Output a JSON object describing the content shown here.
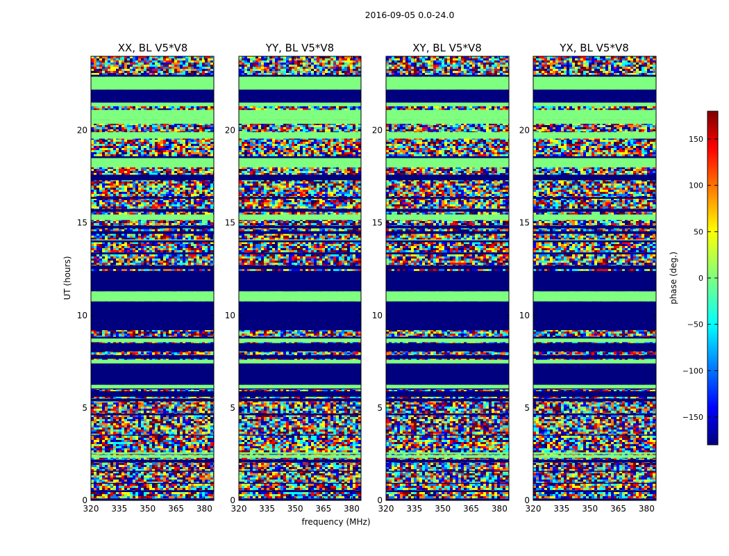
{
  "figure": {
    "suptitle": "2016-09-05 0.0-24.0",
    "xlabel": "frequency (MHz)",
    "ylabel": "UT (hours)"
  },
  "colors": {
    "colormap": [
      "#00007f",
      "#0000ff",
      "#007fff",
      "#00ffff",
      "#7fff7f",
      "#ffff00",
      "#ff7f00",
      "#ff0000",
      "#7f0000"
    ],
    "masked": "#00007f",
    "zero_phase": "#7fff7f"
  },
  "chart_data": {
    "type": "heatmap",
    "colorscale": "jet",
    "panels": [
      {
        "title": "XX, BL V5*V8",
        "polarization": "XX"
      },
      {
        "title": "YY, BL V5*V8",
        "polarization": "YY"
      },
      {
        "title": "XY, BL V5*V8",
        "polarization": "XY"
      },
      {
        "title": "YX, BL V5*V8",
        "polarization": "YX"
      }
    ],
    "x": {
      "label": "frequency (MHz)",
      "range": [
        320,
        385
      ],
      "ticks": [
        320,
        335,
        350,
        365,
        380
      ],
      "tick_labels": [
        "320",
        "335",
        "350",
        "365",
        "380"
      ]
    },
    "y": {
      "label": "UT (hours)",
      "range": [
        0,
        24
      ],
      "ticks": [
        0,
        5,
        10,
        15,
        20
      ],
      "tick_labels": [
        "0",
        "5",
        "10",
        "15",
        "20"
      ]
    },
    "colorbar": {
      "label": "phase (deg.)",
      "range": [
        -180,
        180
      ],
      "ticks": [
        -150,
        -100,
        -50,
        0,
        50,
        100,
        150
      ],
      "tick_labels": [
        "−150",
        "−100",
        "−50",
        "0",
        "50",
        "100",
        "150"
      ]
    },
    "masked_ut_ranges": [
      [
        0.0,
        0.1
      ],
      [
        0.45,
        0.55
      ],
      [
        0.9,
        0.95
      ],
      [
        1.55,
        1.6
      ],
      [
        2.05,
        2.2
      ],
      [
        3.5,
        3.55
      ],
      [
        4.6,
        4.7
      ],
      [
        5.35,
        5.5
      ],
      [
        5.6,
        5.9
      ],
      [
        6.0,
        6.05
      ],
      [
        6.25,
        7.4
      ],
      [
        7.65,
        7.85
      ],
      [
        8.05,
        8.5
      ],
      [
        8.75,
        8.85
      ],
      [
        9.2,
        10.75
      ],
      [
        11.3,
        12.4
      ],
      [
        12.5,
        12.7
      ],
      [
        13.3,
        13.4
      ],
      [
        13.95,
        14.05
      ],
      [
        14.4,
        14.55
      ],
      [
        14.7,
        14.85
      ],
      [
        15.6,
        15.75
      ],
      [
        16.3,
        16.4
      ],
      [
        17.3,
        17.6
      ],
      [
        18.5,
        18.6
      ],
      [
        21.5,
        22.2
      ],
      [
        22.9,
        23.0
      ]
    ],
    "coherent_ut_ranges": [
      [
        2.3,
        2.45
      ],
      [
        2.5,
        2.55
      ],
      [
        2.55,
        2.6
      ],
      [
        6.05,
        6.25
      ],
      [
        7.4,
        7.6
      ],
      [
        8.55,
        8.75
      ],
      [
        10.75,
        11.3
      ],
      [
        14.05,
        14.1
      ],
      [
        15.15,
        15.45
      ],
      [
        18.0,
        18.5
      ],
      [
        19.55,
        19.9
      ],
      [
        20.35,
        20.55
      ],
      [
        20.55,
        21.1
      ],
      [
        21.3,
        21.5
      ],
      [
        22.2,
        22.9
      ]
    ],
    "notes_zero_phase_band_ut": [
      [
        21.3,
        21.5
      ],
      [
        20.55,
        21.1
      ]
    ]
  }
}
